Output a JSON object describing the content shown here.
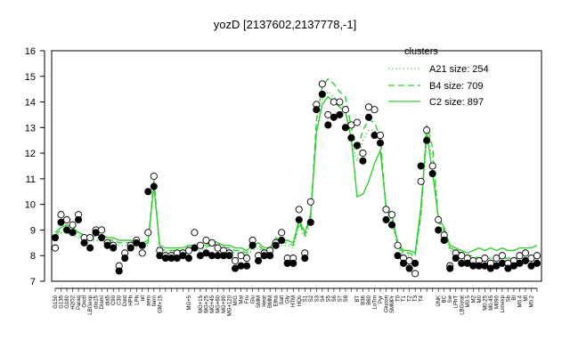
{
  "chart_data": {
    "type": "line",
    "title": "yozD [2137602,2137778,-1]",
    "xlabel": "",
    "ylabel": "",
    "ylim": [
      7,
      16
    ],
    "yticks": [
      7,
      8,
      9,
      10,
      11,
      12,
      13,
      14,
      15,
      16
    ],
    "legend": {
      "title": "clusters",
      "placement": "top-right",
      "entries": [
        {
          "label": "A21 size: 254",
          "style": "dotted"
        },
        {
          "label": "B4 size: 709",
          "style": "dashed"
        },
        {
          "label": "C2 size: 897",
          "style": "solid"
        }
      ]
    },
    "line_color": "#33cc33",
    "categories": [
      "G150",
      "G135",
      "G180",
      "H2O2",
      "Paraq",
      "Oxctl",
      "LBGexp",
      "dia15",
      "Diami",
      "dia5",
      "C90",
      "C30",
      "Cold",
      "HPh",
      "LPh",
      "nit",
      "aero",
      "ferm",
      "GM+15",
      "GM+25",
      "GM+45",
      "GM+60",
      "GM+90",
      "MG+5",
      "MG+10",
      "MG+15",
      "MG+25",
      "MG+45",
      "MG+60",
      "MG+90",
      "MG+120",
      "M/G",
      "Mal",
      "Fru",
      "Glu",
      "SMM",
      "Heat",
      "BMM",
      "Etha",
      "Salt",
      "Gly",
      "HTM",
      "HQs",
      "S1",
      "S2",
      "S3",
      "S4",
      "S5",
      "S6",
      "S7",
      "S8",
      "B8",
      "BT",
      "B36",
      "B60",
      "LoTm",
      "Pyr",
      "Glucon",
      "SMMPr",
      "T0",
      "T1",
      "T2",
      "T3",
      "T4",
      "T5",
      "M9",
      "UNK",
      "BC",
      "Sw",
      "LPhT",
      "LBGstat",
      "M0.5",
      "M2",
      "M0",
      "M0.25",
      "M0.45",
      "M090",
      "Limexp",
      "Sb",
      "BI",
      "M0.4",
      "Mt",
      "M0.2",
      "M0.1"
    ],
    "shown_categories": [
      "G150",
      "G180",
      "Paraq",
      "LBGexp",
      "Diami",
      "C90",
      "Cold",
      "HPh",
      "nit",
      "ferm",
      "GM+15",
      "MG+5",
      "MG+90",
      "M/G",
      "Fru",
      "Heat",
      "Salt",
      "HTM",
      "S1",
      "S3",
      "S5",
      "S8",
      "B60",
      "Pyr",
      "Glucon",
      "T1",
      "T3",
      "BC",
      "LPhT",
      "M0.5",
      "M0",
      "M0.45",
      "Sb",
      "Mt",
      "G135",
      "H2O2",
      "Oxctl",
      "dia15",
      "dia5",
      "C30",
      "LPh",
      "aero",
      "MG+15",
      "MG+25",
      "MG+45",
      "MG+60",
      "MG+120",
      "Mal",
      "Glu",
      "SMM",
      "BMM",
      "Etha",
      "Gly",
      "HQs",
      "S2",
      "S4",
      "S6",
      "S7",
      "BT",
      "B36",
      "LoTm",
      "SMMPr",
      "T0",
      "T2",
      "T4",
      "UNK",
      "Sw",
      "LBGstat",
      "M2",
      "M0.25",
      "M090",
      "Limexp",
      "BI",
      "M0.4",
      "M0.2"
    ],
    "series": [
      {
        "values": [
          8.7,
          8.9,
          8.9,
          8.8,
          8.7,
          8.6,
          8.6,
          8.6,
          8.6,
          8.5,
          8.5,
          8.4,
          8.4,
          8.4,
          8.3,
          8.3,
          8.4,
          10.8,
          8.3,
          8.2,
          8.1,
          8.1,
          8.1,
          8.2,
          8.2,
          8.2,
          8.3,
          8.4,
          8.3,
          8.2,
          8.2,
          8.1,
          8.1,
          8.0,
          8.2,
          8.3,
          8.1,
          8.1,
          8.4,
          8.4,
          8.4,
          8.3,
          9.2,
          8.7,
          9.3,
          12.9,
          14.1,
          14.4,
          14.2,
          14.0,
          13.7,
          12.5,
          11.7,
          12.5,
          12.9,
          12.9,
          12.3,
          9.7,
          9.4,
          8.3,
          8.0,
          8.0,
          8.0,
          9.5,
          12.6,
          11.8,
          9.3,
          8.9,
          8.2,
          8.1,
          8.0,
          7.9,
          7.9,
          7.8,
          7.8,
          7.8,
          7.8,
          7.8,
          7.8,
          7.8,
          7.8,
          7.8,
          7.8,
          7.8
        ]
      },
      {
        "values": [
          8.8,
          9.0,
          9.1,
          9.0,
          8.8,
          8.7,
          8.6,
          8.7,
          8.7,
          8.6,
          8.6,
          8.5,
          8.5,
          8.5,
          8.4,
          8.4,
          8.5,
          11.0,
          8.3,
          8.2,
          8.2,
          8.2,
          8.2,
          8.3,
          8.3,
          8.3,
          8.3,
          8.5,
          8.4,
          8.3,
          8.3,
          8.2,
          8.2,
          8.1,
          8.3,
          8.4,
          8.2,
          8.2,
          8.6,
          8.5,
          8.5,
          8.4,
          9.3,
          8.8,
          9.5,
          13.3,
          14.6,
          14.9,
          14.7,
          14.4,
          14.2,
          13.0,
          12.1,
          12.9,
          13.3,
          13.2,
          12.6,
          9.8,
          9.5,
          8.4,
          8.1,
          8.1,
          8.0,
          9.6,
          13.1,
          12.2,
          9.4,
          9.0,
          8.3,
          8.2,
          8.1,
          8.0,
          8.0,
          7.9,
          7.9,
          7.9,
          7.9,
          7.9,
          7.9,
          7.9,
          7.9,
          7.9,
          7.9,
          7.9
        ]
      },
      {
        "values": [
          8.9,
          9.1,
          9.2,
          9.1,
          8.9,
          8.8,
          8.7,
          8.8,
          8.8,
          8.7,
          8.7,
          8.6,
          8.6,
          8.6,
          8.5,
          8.5,
          8.6,
          10.7,
          8.4,
          8.3,
          8.3,
          8.3,
          8.3,
          8.4,
          8.4,
          8.4,
          8.4,
          8.6,
          8.5,
          8.4,
          8.4,
          8.3,
          8.3,
          8.2,
          8.4,
          8.5,
          8.3,
          8.3,
          8.7,
          8.6,
          8.6,
          8.5,
          9.4,
          8.9,
          9.6,
          12.8,
          13.9,
          14.2,
          14.0,
          13.8,
          13.6,
          12.6,
          10.3,
          10.4,
          10.9,
          11.6,
          12.1,
          9.9,
          9.6,
          8.5,
          8.2,
          8.2,
          8.1,
          9.9,
          12.8,
          11.2,
          9.5,
          9.1,
          8.4,
          8.3,
          8.2,
          8.1,
          8.2,
          8.3,
          8.2,
          8.3,
          8.2,
          8.3,
          8.2,
          8.2,
          8.3,
          8.3,
          8.3,
          8.4
        ]
      }
    ],
    "points": [
      {
        "category": "G150",
        "values": [
          8.3,
          8.7
        ]
      },
      {
        "category": "G135",
        "values": [
          9.6,
          9.3
        ]
      },
      {
        "category": "G180",
        "values": [
          9.4,
          9.0
        ]
      },
      {
        "category": "H2O2",
        "values": [
          9.2,
          8.9
        ]
      },
      {
        "category": "Paraq",
        "values": [
          9.6,
          9.4
        ]
      },
      {
        "category": "Oxctl",
        "values": [
          8.7,
          8.5
        ]
      },
      {
        "category": "LBGexp",
        "values": [
          8.7,
          8.3
        ]
      },
      {
        "category": "dia15",
        "values": [
          9.0,
          8.9
        ]
      },
      {
        "category": "Diami",
        "values": [
          9.0,
          8.7
        ]
      },
      {
        "category": "dia5",
        "values": [
          8.5,
          8.4
        ]
      },
      {
        "category": "C90",
        "values": [
          8.4,
          8.3
        ]
      },
      {
        "category": "C30",
        "values": [
          7.6,
          7.4
        ]
      },
      {
        "category": "Cold",
        "values": [
          8.1,
          7.9
        ]
      },
      {
        "category": "HPh",
        "values": [
          8.4,
          8.3
        ]
      },
      {
        "category": "LPh",
        "values": [
          8.6,
          8.5
        ]
      },
      {
        "category": "nit",
        "values": [
          8.1,
          8.4
        ]
      },
      {
        "category": "aero",
        "values": [
          8.9,
          10.5
        ]
      },
      {
        "category": "ferm",
        "values": [
          11.1,
          10.7
        ]
      },
      {
        "category": "GM+15",
        "values": [
          8.2,
          8.0
        ]
      },
      {
        "category": "GM+25",
        "values": [
          8.0,
          7.9
        ]
      },
      {
        "category": "GM+45",
        "values": [
          8.0,
          7.9
        ]
      },
      {
        "category": "GM+60",
        "values": [
          8.1,
          7.9
        ]
      },
      {
        "category": "GM+90",
        "values": [
          8.1,
          8.0
        ]
      },
      {
        "category": "MG+5",
        "values": [
          8.2,
          7.9
        ]
      },
      {
        "category": "MG+10",
        "values": [
          8.9,
          8.3
        ]
      },
      {
        "category": "MG+15",
        "values": [
          8.4,
          8.0
        ]
      },
      {
        "category": "MG+25",
        "values": [
          8.6,
          8.1
        ]
      },
      {
        "category": "MG+45",
        "values": [
          8.5,
          8.0
        ]
      },
      {
        "category": "MG+60",
        "values": [
          8.3,
          8.0
        ]
      },
      {
        "category": "MG+90",
        "values": [
          8.2,
          8.0
        ]
      },
      {
        "category": "MG+120",
        "values": [
          8.1,
          8.0
        ]
      },
      {
        "category": "M/G",
        "values": [
          7.8,
          7.5
        ]
      },
      {
        "category": "Mal",
        "values": [
          8.0,
          7.6
        ]
      },
      {
        "category": "Fru",
        "values": [
          7.9,
          7.6
        ]
      },
      {
        "category": "Glu",
        "values": [
          8.6,
          8.4
        ]
      },
      {
        "category": "SMM",
        "values": [
          8.0,
          7.8
        ]
      },
      {
        "category": "Heat",
        "values": [
          8.1,
          8.0
        ]
      },
      {
        "category": "BMM",
        "values": [
          8.2,
          8.0
        ]
      },
      {
        "category": "Etha",
        "values": [
          8.5,
          8.4
        ]
      },
      {
        "category": "Salt",
        "values": [
          8.9,
          8.6
        ]
      },
      {
        "category": "Gly",
        "values": [
          7.9,
          7.7
        ]
      },
      {
        "category": "HTM",
        "values": [
          7.9,
          7.7
        ]
      },
      {
        "category": "HQs",
        "values": [
          9.8,
          9.4
        ]
      },
      {
        "category": "S1",
        "values": [
          8.1,
          7.9
        ]
      },
      {
        "category": "S2",
        "values": [
          10.1,
          9.3
        ]
      },
      {
        "category": "S3",
        "values": [
          13.9,
          13.7
        ]
      },
      {
        "category": "S4",
        "values": [
          14.7,
          14.3
        ]
      },
      {
        "category": "S5",
        "values": [
          13.5,
          13.1
        ]
      },
      {
        "category": "S6",
        "values": [
          14.0,
          13.4
        ]
      },
      {
        "category": "S7",
        "values": [
          14.0,
          13.5
        ]
      },
      {
        "category": "S8",
        "values": [
          13.7,
          13.0
        ]
      },
      {
        "category": "B8",
        "values": [
          13.1,
          12.6
        ]
      },
      {
        "category": "BT",
        "values": [
          13.2,
          12.3
        ]
      },
      {
        "category": "B36",
        "values": [
          12.0,
          11.7
        ]
      },
      {
        "category": "B60",
        "values": [
          13.8,
          13.4
        ]
      },
      {
        "category": "LoTm",
        "values": [
          13.7,
          12.7
        ]
      },
      {
        "category": "Pyr",
        "values": [
          12.7,
          12.4
        ]
      },
      {
        "category": "Glucon",
        "values": [
          9.8,
          9.4
        ]
      },
      {
        "category": "SMMPr",
        "values": [
          9.6,
          9.2
        ]
      },
      {
        "category": "T0",
        "values": [
          8.4,
          8.0
        ]
      },
      {
        "category": "T1",
        "values": [
          7.9,
          7.7
        ]
      },
      {
        "category": "T2",
        "values": [
          7.8,
          7.5
        ]
      },
      {
        "category": "T3",
        "values": [
          7.3,
          7.7
        ]
      },
      {
        "category": "T4",
        "values": [
          10.9,
          11.5
        ]
      },
      {
        "category": "T5",
        "values": [
          12.9,
          12.5
        ]
      },
      {
        "category": "M9",
        "values": [
          11.5,
          11.2
        ]
      },
      {
        "category": "UNK",
        "values": [
          9.4,
          9.0
        ]
      },
      {
        "category": "BC",
        "values": [
          8.8,
          8.6
        ]
      },
      {
        "category": "Sw",
        "values": [
          7.6,
          7.5
        ]
      },
      {
        "category": "LPhT",
        "values": [
          8.1,
          7.9
        ]
      },
      {
        "category": "LBGstat",
        "values": [
          8.0,
          7.7
        ]
      },
      {
        "category": "M0.5",
        "values": [
          7.9,
          7.7
        ]
      },
      {
        "category": "M2",
        "values": [
          7.8,
          7.6
        ]
      },
      {
        "category": "M0",
        "values": [
          7.8,
          7.6
        ]
      },
      {
        "category": "M0.25",
        "values": [
          7.9,
          7.6
        ]
      },
      {
        "category": "M0.45",
        "values": [
          7.7,
          7.5
        ]
      },
      {
        "category": "M090",
        "values": [
          7.9,
          7.6
        ]
      },
      {
        "category": "Limexp",
        "values": [
          8.0,
          7.7
        ]
      },
      {
        "category": "Sb",
        "values": [
          7.7,
          7.5
        ]
      },
      {
        "category": "BI",
        "values": [
          7.8,
          7.6
        ]
      },
      {
        "category": "M0.4",
        "values": [
          8.0,
          7.7
        ]
      },
      {
        "category": "Mt",
        "values": [
          8.1,
          7.8
        ]
      },
      {
        "category": "M0.2",
        "values": [
          7.9,
          7.6
        ]
      },
      {
        "category": "M0.1",
        "values": [
          8.0,
          7.7
        ]
      }
    ]
  }
}
